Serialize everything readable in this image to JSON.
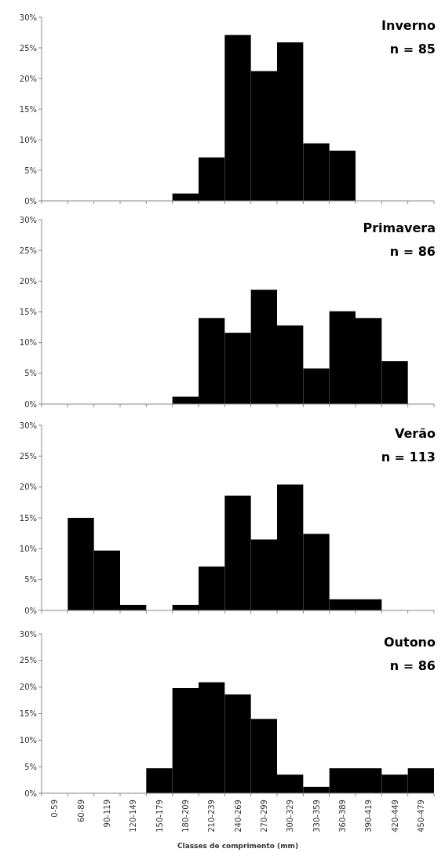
{
  "chart_data": [
    {
      "type": "bar",
      "title": "Inverno",
      "subtitle": "n = 85",
      "categories": [
        null,
        null,
        null,
        null,
        null,
        null,
        null,
        null,
        null,
        null,
        null,
        null,
        null,
        null,
        null
      ],
      "color": "#000000",
      "values": [
        0,
        0,
        0,
        0,
        0,
        1.2,
        7.1,
        27.1,
        21.2,
        25.9,
        9.4,
        8.2,
        0,
        0,
        0
      ],
      "ylim": [
        0,
        30
      ],
      "yticks": [
        {
          "value": 0,
          "label": "0%"
        },
        {
          "value": 5,
          "label": "5%"
        },
        {
          "value": 10,
          "label": "10%"
        },
        {
          "value": 15,
          "label": "15%"
        },
        {
          "value": 20,
          "label": "20%"
        },
        {
          "value": 25,
          "label": "25%"
        },
        {
          "value": 30,
          "label": "30%"
        }
      ]
    },
    {
      "type": "bar",
      "title": "Primavera",
      "subtitle": "n = 86",
      "categories": [
        null,
        null,
        null,
        null,
        null,
        null,
        null,
        null,
        null,
        null,
        null,
        null,
        null,
        null,
        null
      ],
      "color": "#000000",
      "values": [
        0,
        0,
        0,
        0,
        0,
        1.2,
        14.0,
        11.6,
        18.6,
        12.8,
        5.8,
        15.1,
        14.0,
        7.0,
        0
      ],
      "ylim": [
        0,
        30
      ],
      "yticks": [
        {
          "value": 0,
          "label": "0%"
        },
        {
          "value": 5,
          "label": "5%"
        },
        {
          "value": 10,
          "label": "10%"
        },
        {
          "value": 15,
          "label": "15%"
        },
        {
          "value": 20,
          "label": "20%"
        },
        {
          "value": 25,
          "label": "25%"
        },
        {
          "value": 30,
          "label": "30%"
        }
      ]
    },
    {
      "type": "bar",
      "title": "Verão",
      "subtitle": "n = 113",
      "categories": [
        null,
        null,
        null,
        null,
        null,
        null,
        null,
        null,
        null,
        null,
        null,
        null,
        null,
        null,
        null
      ],
      "color": "#000000",
      "values": [
        0,
        15.0,
        9.7,
        0.9,
        0,
        0.9,
        7.1,
        18.6,
        11.5,
        20.4,
        12.4,
        1.8,
        1.8,
        0,
        0
      ],
      "ylim": [
        0,
        30
      ],
      "yticks": [
        {
          "value": 0,
          "label": "0%"
        },
        {
          "value": 5,
          "label": "5%"
        },
        {
          "value": 10,
          "label": "10%"
        },
        {
          "value": 15,
          "label": "15%"
        },
        {
          "value": 20,
          "label": "20%"
        },
        {
          "value": 25,
          "label": "25%"
        },
        {
          "value": 30,
          "label": "30%"
        }
      ]
    },
    {
      "type": "bar",
      "title": "Outono",
      "subtitle": "n = 86",
      "xlabel": "Classes de comprimento (mm)",
      "categories": [
        "0-59",
        "60-89",
        "90-119",
        "120-149",
        "150-179",
        "180-209",
        "210-239",
        "240-269",
        "270-299",
        "300-329",
        "330-359",
        "360-389",
        "390-419",
        "420-449",
        "450-479"
      ],
      "color": "#000000",
      "values": [
        0,
        0,
        0,
        0,
        4.7,
        19.8,
        20.9,
        18.6,
        14.0,
        3.5,
        1.2,
        4.7,
        4.7,
        3.5,
        4.7
      ],
      "ylim": [
        0,
        30
      ],
      "yticks": [
        {
          "value": 0,
          "label": "0%"
        },
        {
          "value": 5,
          "label": "5%"
        },
        {
          "value": 10,
          "label": "10%"
        },
        {
          "value": 15,
          "label": "15%"
        },
        {
          "value": 20,
          "label": "20%"
        },
        {
          "value": 25,
          "label": "25%"
        },
        {
          "value": 30,
          "label": "30%"
        }
      ]
    }
  ]
}
